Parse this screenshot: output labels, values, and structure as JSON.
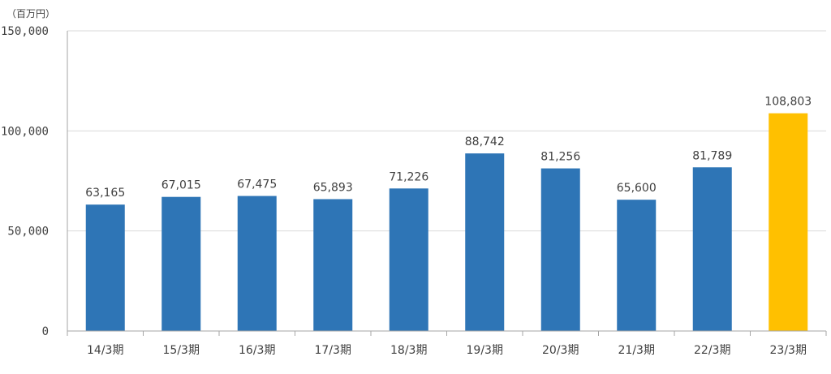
{
  "chart_data": {
    "type": "bar",
    "unit_label": "（百万円）",
    "categories": [
      "14/3期",
      "15/3期",
      "16/3期",
      "17/3期",
      "18/3期",
      "19/3期",
      "20/3期",
      "21/3期",
      "22/3期",
      "23/3期"
    ],
    "values": [
      63165,
      67015,
      67475,
      65893,
      71226,
      88742,
      81256,
      65600,
      81789,
      108803
    ],
    "data_labels": [
      "63,165",
      "67,015",
      "67,475",
      "65,893",
      "71,226",
      "88,742",
      "81,256",
      "65,600",
      "81,789",
      "108,803"
    ],
    "ylim": [
      0,
      150000
    ],
    "y_ticks": [
      0,
      50000,
      100000,
      150000
    ],
    "y_tick_labels": [
      "0",
      "50,000",
      "100,000",
      "150,000"
    ],
    "grid": true,
    "colors": {
      "bar": "#2e75b6",
      "highlight_bar": "#ffc000",
      "gridline": "#d9d9d9",
      "axis": "#a6a6a6",
      "text": "#404040"
    },
    "highlight_index": 9
  }
}
